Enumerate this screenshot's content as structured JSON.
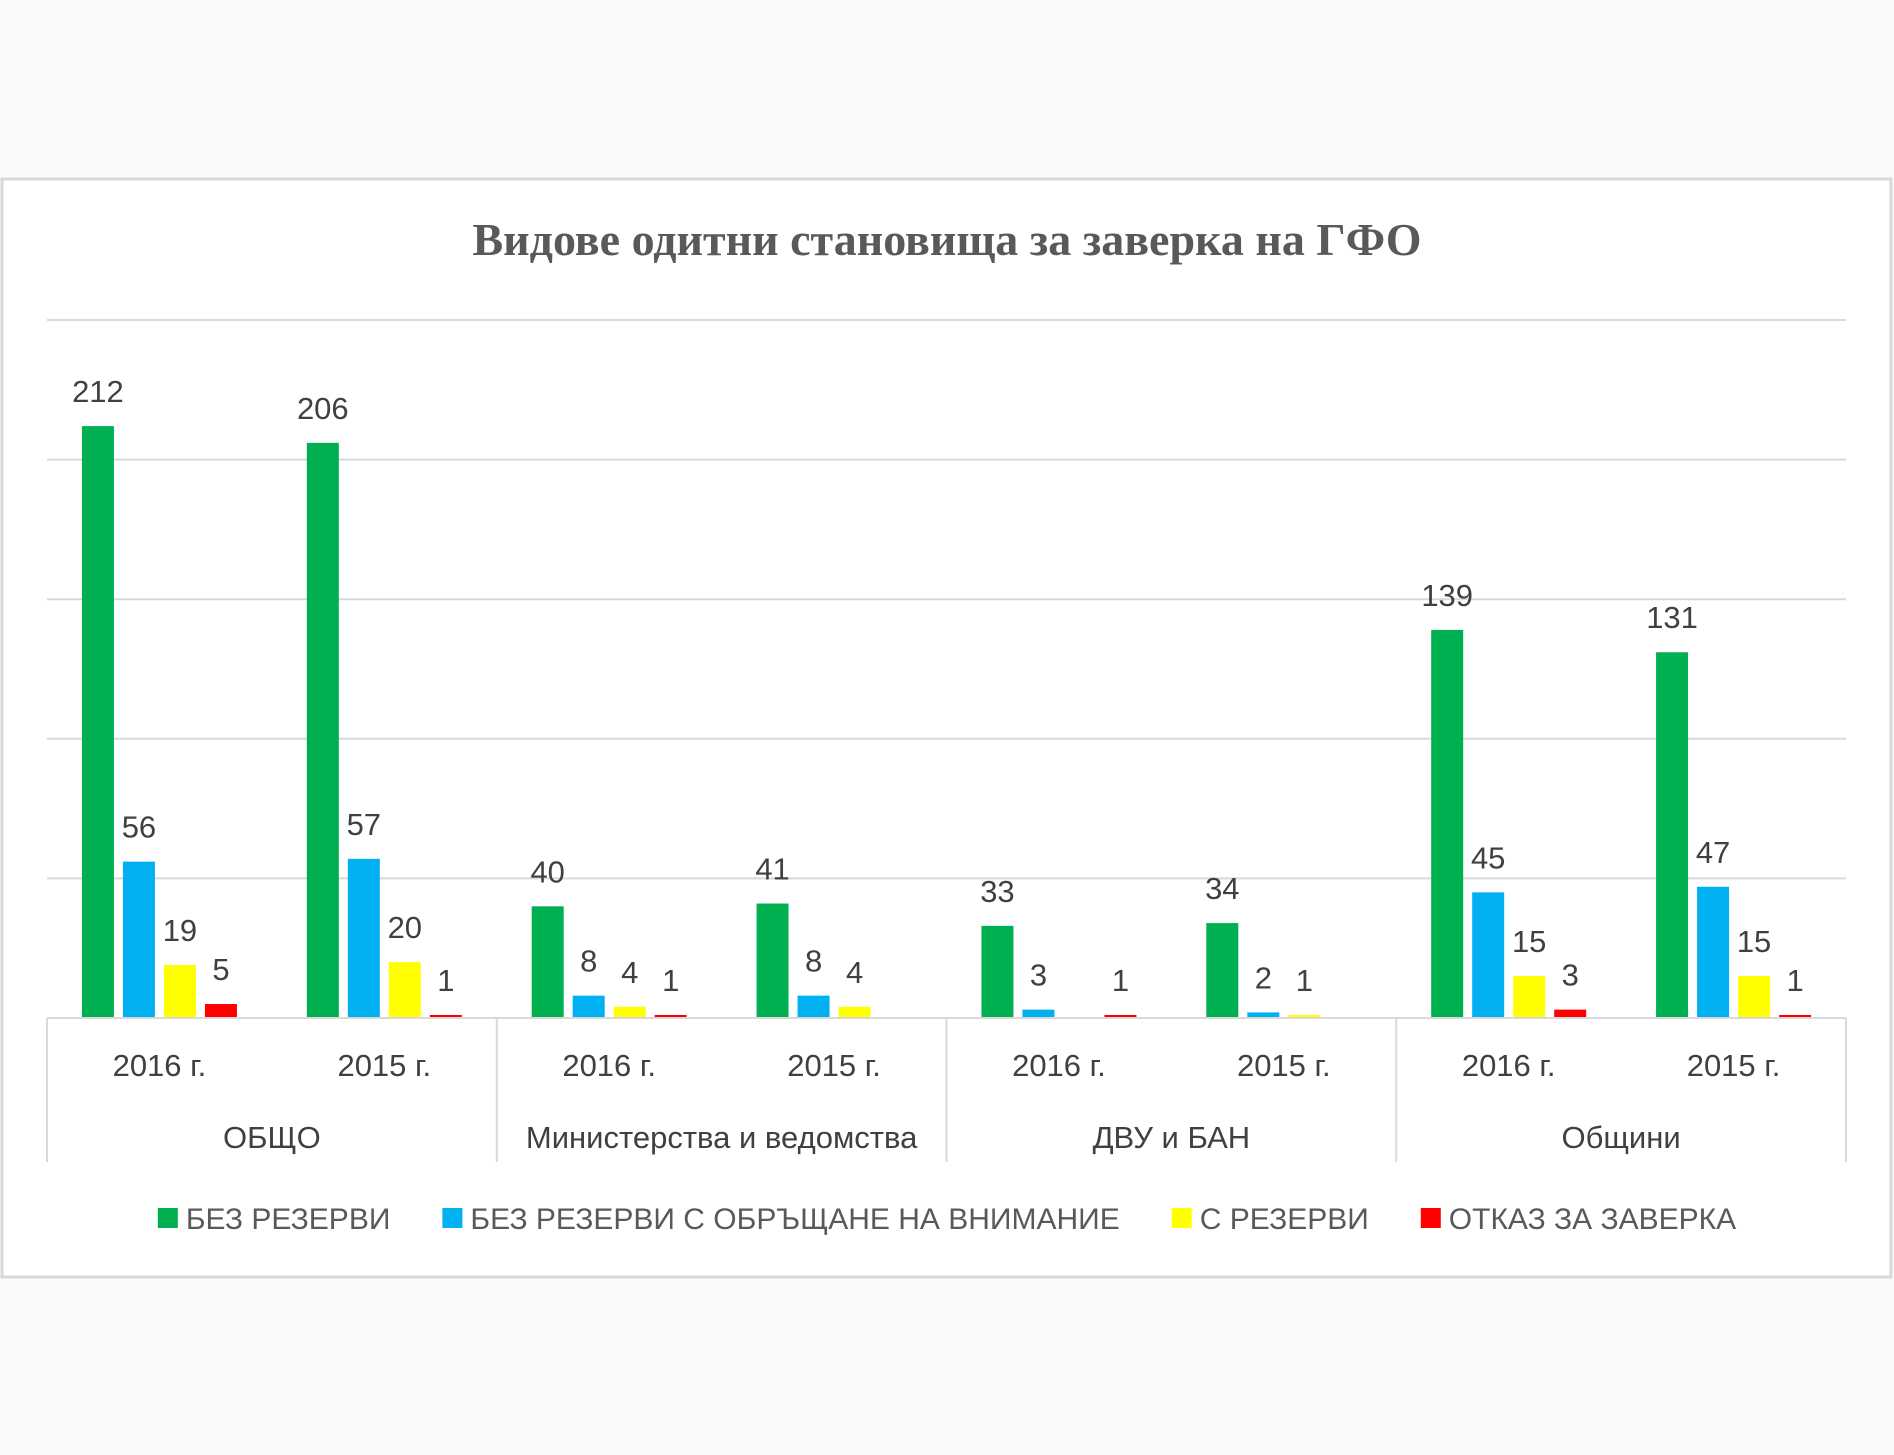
{
  "chart_data": {
    "type": "bar",
    "title": "Видове одитни  становища  за заверка на ГФО",
    "groups": [
      "ОБЩО",
      "Министерства и ведомства",
      "ДВУ и БАН",
      "Общини"
    ],
    "categories": [
      "2016 г.",
      "2015 г.",
      "2016 г.",
      "2015 г.",
      "2016 г.",
      "2015 г.",
      "2016 г.",
      "2015 г."
    ],
    "series": [
      {
        "name": "БЕЗ РЕЗЕРВИ",
        "color": "#00b050",
        "values": [
          212,
          206,
          40,
          41,
          33,
          34,
          139,
          131
        ]
      },
      {
        "name": "БЕЗ РЕЗЕРВИ С ОБРЪЩАНЕ НА ВНИМАНИЕ",
        "color": "#00b0f0",
        "values": [
          56,
          57,
          8,
          8,
          3,
          2,
          45,
          47
        ]
      },
      {
        "name": "С РЕЗЕРВИ",
        "color": "#ffff00",
        "values": [
          19,
          20,
          4,
          4,
          null,
          1,
          15,
          15
        ]
      },
      {
        "name": "ОТКАЗ ЗА ЗАВЕРКА",
        "color": "#ff0000",
        "values": [
          5,
          1,
          1,
          null,
          1,
          null,
          3,
          1
        ]
      }
    ],
    "ylim": [
      0,
      250
    ],
    "grid": true,
    "y_axis_labels_shown": false,
    "legend_position": "bottom"
  }
}
